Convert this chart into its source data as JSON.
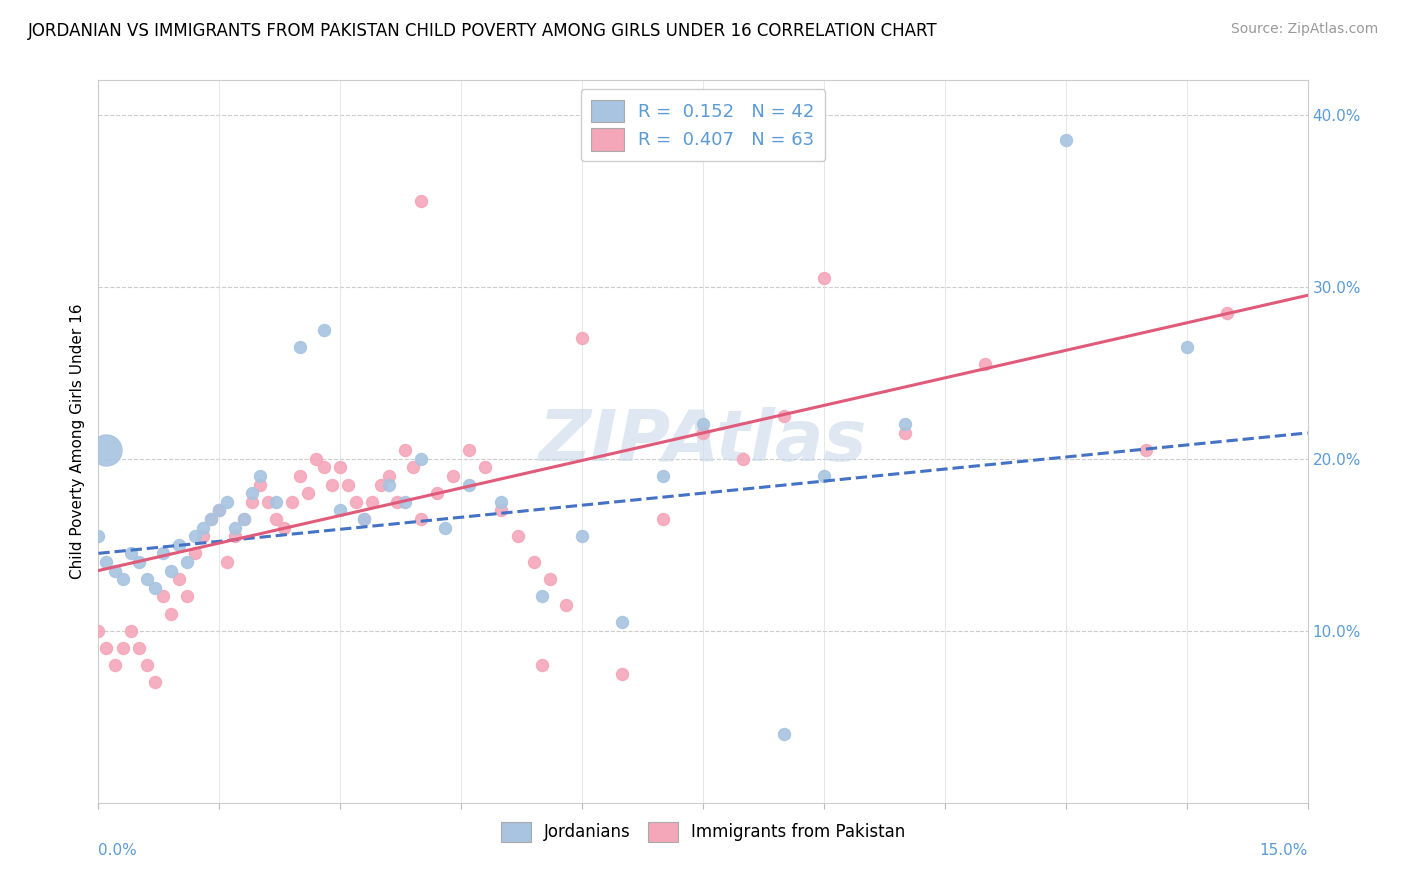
{
  "title": "JORDANIAN VS IMMIGRANTS FROM PAKISTAN CHILD POVERTY AMONG GIRLS UNDER 16 CORRELATION CHART",
  "source": "Source: ZipAtlas.com",
  "ylabel": "Child Poverty Among Girls Under 16",
  "legend_label1": "Jordanians",
  "legend_label2": "Immigrants from Pakistan",
  "blue_color": "#a8c4e0",
  "pink_color": "#f4a7b9",
  "blue_line_color": "#4472c4",
  "pink_line_color": "#e05a7a",
  "watermark_color": "#c8d8ea",
  "xmin": 0.0,
  "xmax": 0.15,
  "ymin": 0.0,
  "ymax": 0.42,
  "jordanians_x": [
    0.0,
    0.001,
    0.002,
    0.003,
    0.004,
    0.005,
    0.006,
    0.007,
    0.008,
    0.009,
    0.01,
    0.011,
    0.012,
    0.013,
    0.014,
    0.015,
    0.016,
    0.017,
    0.018,
    0.019,
    0.02,
    0.022,
    0.025,
    0.028,
    0.03,
    0.033,
    0.036,
    0.038,
    0.04,
    0.043,
    0.046,
    0.05,
    0.055,
    0.06,
    0.065,
    0.07,
    0.075,
    0.085,
    0.09,
    0.1,
    0.12,
    0.135
  ],
  "jordanians_y": [
    0.155,
    0.14,
    0.135,
    0.13,
    0.145,
    0.14,
    0.13,
    0.125,
    0.145,
    0.135,
    0.15,
    0.14,
    0.155,
    0.16,
    0.165,
    0.17,
    0.175,
    0.16,
    0.165,
    0.18,
    0.19,
    0.175,
    0.265,
    0.275,
    0.17,
    0.165,
    0.185,
    0.175,
    0.2,
    0.16,
    0.185,
    0.175,
    0.12,
    0.155,
    0.105,
    0.19,
    0.22,
    0.04,
    0.19,
    0.22,
    0.385,
    0.265
  ],
  "jordanians_large_x": [
    0.001
  ],
  "jordanians_large_y": [
    0.205
  ],
  "pakistan_x": [
    0.0,
    0.001,
    0.002,
    0.003,
    0.004,
    0.005,
    0.006,
    0.007,
    0.008,
    0.009,
    0.01,
    0.011,
    0.012,
    0.013,
    0.014,
    0.015,
    0.016,
    0.017,
    0.018,
    0.019,
    0.02,
    0.021,
    0.022,
    0.023,
    0.024,
    0.025,
    0.026,
    0.027,
    0.028,
    0.029,
    0.03,
    0.031,
    0.032,
    0.033,
    0.034,
    0.035,
    0.036,
    0.037,
    0.038,
    0.039,
    0.04,
    0.042,
    0.044,
    0.046,
    0.048,
    0.05,
    0.052,
    0.054,
    0.056,
    0.058,
    0.06,
    0.065,
    0.07,
    0.075,
    0.08,
    0.085,
    0.09,
    0.1,
    0.11,
    0.13,
    0.14,
    0.04,
    0.055
  ],
  "pakistan_y": [
    0.1,
    0.09,
    0.08,
    0.09,
    0.1,
    0.09,
    0.08,
    0.07,
    0.12,
    0.11,
    0.13,
    0.12,
    0.145,
    0.155,
    0.165,
    0.17,
    0.14,
    0.155,
    0.165,
    0.175,
    0.185,
    0.175,
    0.165,
    0.16,
    0.175,
    0.19,
    0.18,
    0.2,
    0.195,
    0.185,
    0.195,
    0.185,
    0.175,
    0.165,
    0.175,
    0.185,
    0.19,
    0.175,
    0.205,
    0.195,
    0.165,
    0.18,
    0.19,
    0.205,
    0.195,
    0.17,
    0.155,
    0.14,
    0.13,
    0.115,
    0.27,
    0.075,
    0.165,
    0.215,
    0.2,
    0.225,
    0.305,
    0.215,
    0.255,
    0.205,
    0.285,
    0.35,
    0.08
  ],
  "blue_trend_x": [
    0.0,
    0.15
  ],
  "blue_trend_y": [
    0.145,
    0.215
  ],
  "pink_trend_x": [
    0.0,
    0.15
  ],
  "pink_trend_y": [
    0.135,
    0.295
  ]
}
